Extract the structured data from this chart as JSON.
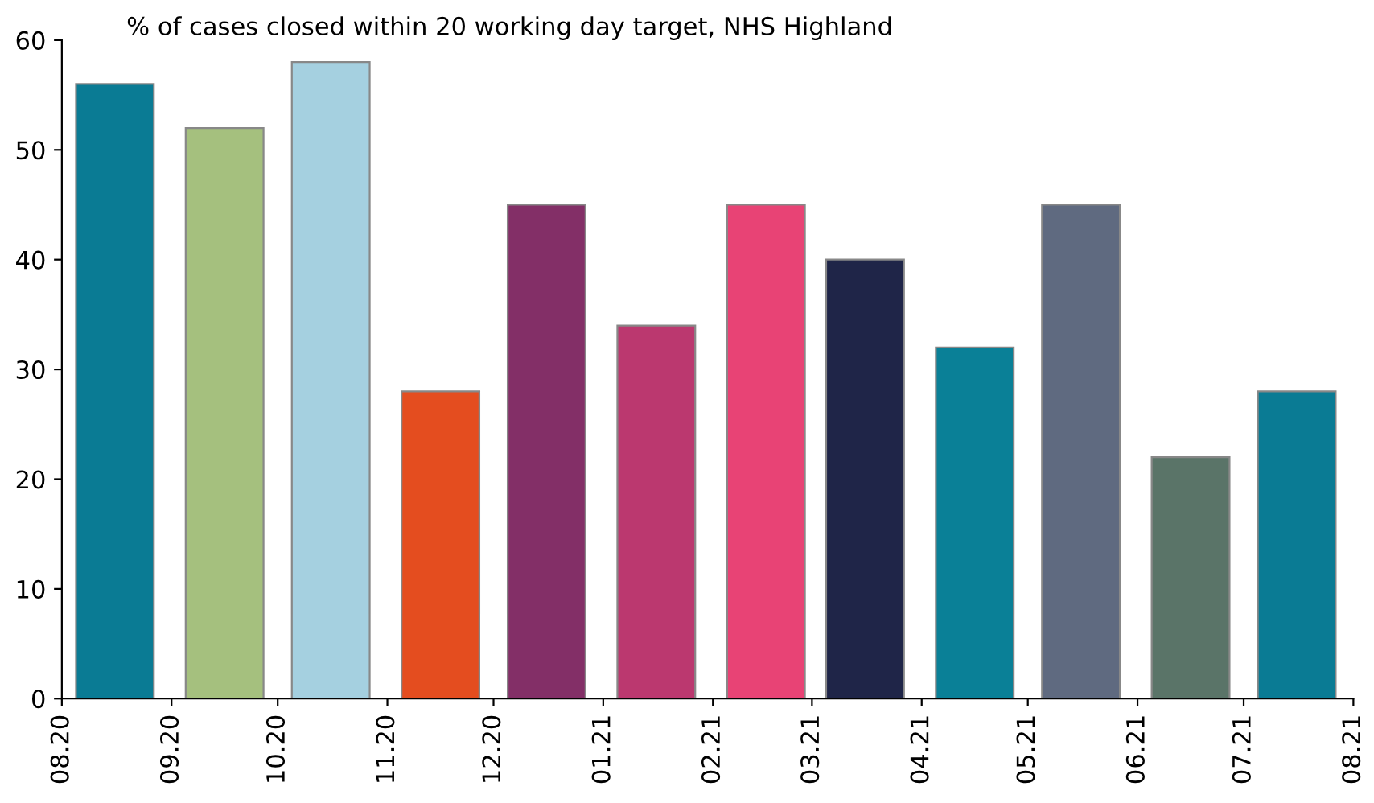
{
  "chart_data": {
    "type": "bar",
    "title": "% of cases closed within 20 working day target, NHS Highland",
    "x": [
      "2020-08-16",
      "2020-09-16",
      "2020-10-16",
      "2020-11-16",
      "2020-12-16",
      "2021-01-16",
      "2021-02-16",
      "2021-03-16",
      "2021-04-16",
      "2021-05-16",
      "2021-06-16",
      "2021-07-16"
    ],
    "values": [
      56,
      52,
      58,
      28,
      45,
      34,
      45,
      40,
      32,
      45,
      22,
      28
    ],
    "colors": [
      "#0a7b94",
      "#a5c07e",
      "#a5d0e0",
      "#e44d1f",
      "#832f67",
      "#bb386f",
      "#e84375",
      "#1f2548",
      "#0a8097",
      "#5f6a80",
      "#5a7468",
      "#0a7b94"
    ],
    "xlim": [
      "2020-08",
      "2021-08"
    ],
    "xticks": [
      {
        "value": "2020-08",
        "label": "08.20"
      },
      {
        "value": "2020-09",
        "label": "09.20"
      },
      {
        "value": "2020-10",
        "label": "10.20"
      },
      {
        "value": "2020-11",
        "label": "11.20"
      },
      {
        "value": "2020-12",
        "label": "12.20"
      },
      {
        "value": "2021-01",
        "label": "01.21"
      },
      {
        "value": "2021-02",
        "label": "02.21"
      },
      {
        "value": "2021-03",
        "label": "03.21"
      },
      {
        "value": "2021-04",
        "label": "04.21"
      },
      {
        "value": "2021-05",
        "label": "05.21"
      },
      {
        "value": "2021-06",
        "label": "06.21"
      },
      {
        "value": "2021-07",
        "label": "07.21"
      },
      {
        "value": "2021-08",
        "label": "08.21"
      }
    ],
    "ylim": [
      0,
      60
    ],
    "yticks": [
      0,
      10,
      20,
      30,
      40,
      50,
      60
    ],
    "grid": false,
    "legend": false
  }
}
